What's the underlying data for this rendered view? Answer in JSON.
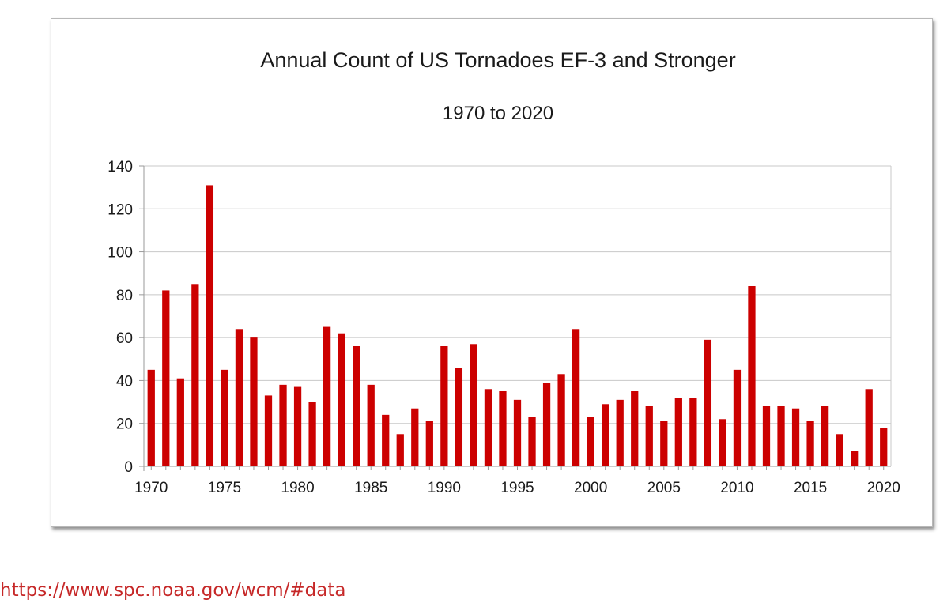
{
  "chart_data": {
    "type": "bar",
    "title": "Annual Count of US Tornadoes EF-3 and Stronger",
    "subtitle": "1970 to 2020",
    "xlabel": "",
    "ylabel": "",
    "x_tick_labels": [
      "1970",
      "1975",
      "1980",
      "1985",
      "1990",
      "1995",
      "2000",
      "2005",
      "2010",
      "2015",
      "2020"
    ],
    "y_tick_labels": [
      "0",
      "20",
      "40",
      "60",
      "80",
      "100",
      "120",
      "140"
    ],
    "ylim": [
      0,
      140
    ],
    "grid": true,
    "legend": "none",
    "bar_color": "#cc0000",
    "categories": [
      1970,
      1971,
      1972,
      1973,
      1974,
      1975,
      1976,
      1977,
      1978,
      1979,
      1980,
      1981,
      1982,
      1983,
      1984,
      1985,
      1986,
      1987,
      1988,
      1989,
      1990,
      1991,
      1992,
      1993,
      1994,
      1995,
      1996,
      1997,
      1998,
      1999,
      2000,
      2001,
      2002,
      2003,
      2004,
      2005,
      2006,
      2007,
      2008,
      2009,
      2010,
      2011,
      2012,
      2013,
      2014,
      2015,
      2016,
      2017,
      2018,
      2019,
      2020
    ],
    "values": [
      45,
      82,
      41,
      85,
      131,
      45,
      64,
      60,
      33,
      38,
      37,
      30,
      65,
      62,
      56,
      38,
      24,
      15,
      27,
      21,
      56,
      46,
      57,
      36,
      35,
      31,
      23,
      39,
      43,
      64,
      23,
      29,
      31,
      35,
      28,
      21,
      32,
      32,
      59,
      22,
      45,
      84,
      28,
      28,
      27,
      21,
      28,
      15,
      7,
      36,
      18
    ]
  },
  "source": {
    "link_text": "https://www.spc.noaa.gov/wcm/#data",
    "link_color": "#c62828"
  }
}
